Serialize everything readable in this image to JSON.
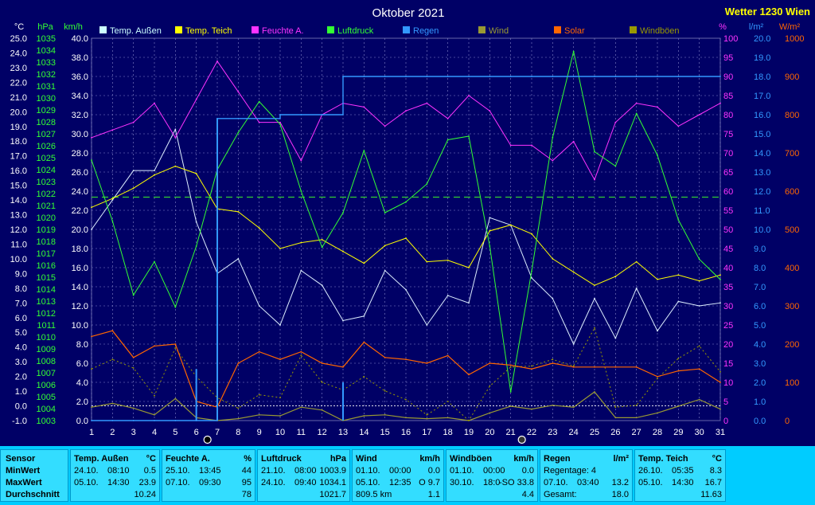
{
  "chart_data": {
    "type": "line",
    "title": "Oktober 2021",
    "brand": "Wetter 1230 Wien",
    "days": [
      1,
      2,
      3,
      4,
      5,
      6,
      7,
      8,
      9,
      10,
      11,
      12,
      13,
      14,
      15,
      16,
      17,
      18,
      19,
      20,
      21,
      22,
      23,
      24,
      25,
      26,
      27,
      28,
      29,
      30,
      31
    ],
    "axes": {
      "temp": {
        "unit": "°C",
        "ticks": [
          "25.0",
          "24.0",
          "23.0",
          "22.0",
          "21.0",
          "20.0",
          "19.0",
          "18.0",
          "17.0",
          "16.0",
          "15.0",
          "14.0",
          "13.0",
          "12.0",
          "11.0",
          "10.0",
          "9.0",
          "8.0",
          "7.0",
          "6.0",
          "5.0",
          "4.0",
          "3.0",
          "2.0",
          "1.0",
          "0.0",
          "-1.0"
        ],
        "range": [
          -1,
          25
        ]
      },
      "pressure": {
        "unit": "hPa",
        "ticks": [
          "1035",
          "1034",
          "1033",
          "1032",
          "1031",
          "1030",
          "1029",
          "1028",
          "1027",
          "1026",
          "1025",
          "1024",
          "1023",
          "1022",
          "1021",
          "1020",
          "1019",
          "1018",
          "1017",
          "1016",
          "1015",
          "1014",
          "1013",
          "1012",
          "1011",
          "1010",
          "1009",
          "1008",
          "1007",
          "1006",
          "1005",
          "1004",
          "1003"
        ],
        "range": [
          1003,
          1035
        ]
      },
      "wind": {
        "unit": "km/h",
        "ticks": [
          "40.0",
          "38.0",
          "36.0",
          "34.0",
          "32.0",
          "30.0",
          "28.0",
          "26.0",
          "24.0",
          "22.0",
          "20.0",
          "18.0",
          "16.0",
          "14.0",
          "12.0",
          "10.0",
          "8.0",
          "6.0",
          "4.0",
          "2.0",
          "0.0"
        ],
        "range": [
          0,
          40
        ]
      },
      "humidity": {
        "unit": "%",
        "ticks": [
          "100",
          "95",
          "90",
          "85",
          "80",
          "75",
          "70",
          "65",
          "60",
          "55",
          "50",
          "45",
          "40",
          "35",
          "30",
          "25",
          "20",
          "15",
          "10",
          "5",
          "0"
        ],
        "range": [
          0,
          100
        ]
      },
      "rain": {
        "unit": "l/m²",
        "ticks": [
          "20.0",
          "19.0",
          "18.0",
          "17.0",
          "16.0",
          "15.0",
          "14.0",
          "13.0",
          "12.0",
          "11.0",
          "10.0",
          "9.0",
          "8.0",
          "7.0",
          "6.0",
          "5.0",
          "4.0",
          "3.0",
          "2.0",
          "1.0",
          "0.0"
        ],
        "range": [
          0,
          20
        ]
      },
      "solar": {
        "unit": "W/m²",
        "ticks": [
          "1000",
          "900",
          "800",
          "700",
          "600",
          "500",
          "400",
          "300",
          "200",
          "100",
          "0"
        ],
        "range": [
          0,
          1000
        ]
      }
    },
    "legend": [
      {
        "name": "Temp. Außen",
        "color": "#ccffff"
      },
      {
        "name": "Temp. Teich",
        "color": "#ffff00"
      },
      {
        "name": "Feuchte A.",
        "color": "#ff33ff"
      },
      {
        "name": "Luftdruck",
        "color": "#33ff33"
      },
      {
        "name": "Regen",
        "color": "#3399ff"
      },
      {
        "name": "Wind",
        "color": "#999933"
      },
      {
        "name": "Solar",
        "color": "#ff6600"
      },
      {
        "name": "Windböen",
        "color": "#999900"
      }
    ],
    "series": [
      {
        "key": "temp_out",
        "axis": "temp",
        "color": "#ddeeff",
        "values": [
          12.0,
          14.0,
          16.0,
          16.0,
          18.8,
          12.5,
          9.0,
          10.0,
          6.8,
          5.5,
          9.2,
          8.2,
          5.8,
          6.1,
          9.2,
          7.9,
          5.5,
          7.5,
          7.0,
          12.8,
          12.3,
          8.7,
          7.3,
          4.2,
          7.3,
          4.6,
          8.0,
          5.1,
          7.1,
          6.8,
          7.0
        ]
      },
      {
        "key": "temp_pond",
        "axis": "temp",
        "color": "#ffff00",
        "values": [
          13.5,
          14.1,
          14.8,
          15.7,
          16.3,
          15.8,
          13.4,
          13.2,
          12.1,
          10.7,
          11.1,
          11.3,
          10.5,
          9.7,
          10.9,
          11.4,
          9.8,
          9.9,
          9.4,
          11.9,
          12.3,
          11.7,
          10.0,
          9.1,
          8.2,
          8.8,
          9.8,
          8.6,
          8.9,
          8.5,
          8.9
        ]
      },
      {
        "key": "humidity",
        "axis": "humidity",
        "values": [
          74,
          76,
          78,
          83,
          74,
          84,
          94,
          86,
          78,
          78,
          68,
          80,
          83,
          82,
          77,
          81,
          83,
          79,
          85,
          81,
          72,
          72,
          68,
          73,
          63,
          78,
          83,
          82,
          77,
          80,
          83
        ]
      },
      {
        "key": "pressure",
        "axis": "pressure",
        "values": [
          1024.8,
          1019.7,
          1013.5,
          1016.3,
          1012.5,
          1017.6,
          1024.0,
          1027.1,
          1029.7,
          1027.8,
          1022.2,
          1017.5,
          1020.4,
          1025.6,
          1020.4,
          1021.3,
          1022.8,
          1026.5,
          1026.8,
          1017.6,
          1005.4,
          1015.5,
          1026.7,
          1033.9,
          1025.5,
          1024.3,
          1028.7,
          1025.2,
          1019.8,
          1016.5,
          1014.8
        ]
      },
      {
        "key": "wind_avg",
        "axis": "wind",
        "values": [
          1.4,
          1.8,
          1.3,
          0.6,
          2.3,
          0.3,
          0.0,
          0.2,
          0.6,
          0.5,
          1.4,
          1.1,
          0.0,
          0.5,
          0.6,
          0.3,
          0.2,
          0.3,
          0.0,
          0.8,
          1.5,
          1.2,
          1.6,
          1.4,
          3.0,
          0.3,
          0.3,
          0.8,
          1.5,
          2.2,
          1.2
        ]
      },
      {
        "key": "wind_gust",
        "axis": "wind",
        "values": [
          5.4,
          6.4,
          5.5,
          2.6,
          7.6,
          4.6,
          2.4,
          1.3,
          2.7,
          2.4,
          6.8,
          4.0,
          3.2,
          4.6,
          3.1,
          2.2,
          0.6,
          2.0,
          0.0,
          3.6,
          5.6,
          5.7,
          6.4,
          5.7,
          9.7,
          1.4,
          1.6,
          4.4,
          6.5,
          7.8,
          5.1
        ]
      },
      {
        "key": "solar",
        "axis": "solar",
        "values": [
          220,
          235,
          165,
          195,
          200,
          50,
          35,
          150,
          180,
          160,
          180,
          150,
          140,
          205,
          165,
          160,
          150,
          170,
          120,
          150,
          145,
          135,
          150,
          140,
          140,
          140,
          140,
          115,
          130,
          135,
          100
        ]
      },
      {
        "key": "rain",
        "axis": "rain",
        "values": [
          0.0,
          0.0,
          0.0,
          0.0,
          0.0,
          0.0,
          15.8,
          15.8,
          15.8,
          16.0,
          16.0,
          16.0,
          18.0,
          18.0,
          18.0,
          18.0,
          18.0,
          18.0,
          18.0,
          18.0,
          18.0,
          18.0,
          18.0,
          18.0,
          18.0,
          18.0,
          18.0,
          18.0,
          18.0,
          18.0,
          18.0
        ]
      }
    ],
    "moon_phases": [
      {
        "day": 6,
        "symbol": "●"
      },
      {
        "day": 21,
        "symbol": "◎"
      }
    ]
  },
  "summary": {
    "labels": {
      "sensor": "Sensor",
      "min": "MinWert",
      "max": "MaxWert",
      "avg": "Durchschnitt"
    },
    "columns": [
      {
        "title": "Temp. Außen",
        "unit": "°C",
        "min": [
          "24.10.",
          "08:10",
          "0.5"
        ],
        "max": [
          "05.10.",
          "14:30",
          "23.9"
        ],
        "avg": [
          "",
          "",
          "10.24"
        ]
      },
      {
        "title": "Feuchte A.",
        "unit": "%",
        "min": [
          "25.10.",
          "13:45",
          "44"
        ],
        "max": [
          "07.10.",
          "09:30",
          "95"
        ],
        "avg": [
          "",
          "",
          "78"
        ]
      },
      {
        "title": "Luftdruck",
        "unit": "hPa",
        "min": [
          "21.10.",
          "08:00",
          "1003.9"
        ],
        "max": [
          "24.10.",
          "09:40",
          "1034.1"
        ],
        "avg": [
          "",
          "",
          "1021.7"
        ]
      },
      {
        "title": "Wind",
        "unit": "km/h",
        "min": [
          "01.10.",
          "00:00",
          "0.0"
        ],
        "max": [
          "05.10.",
          "12:35",
          "O 9.7"
        ],
        "avg": [
          "809.5 km",
          "",
          "1.1"
        ]
      },
      {
        "title": "Windböen",
        "unit": "km/h",
        "min": [
          "01.10.",
          "00:00",
          "0.0"
        ],
        "max": [
          "30.10.",
          "18:0",
          "-SO 33.8"
        ],
        "avg": [
          "",
          "",
          "4.4"
        ]
      },
      {
        "title": "Regen",
        "unit": "l/m²",
        "min": [
          "Regentage: 4",
          "",
          ""
        ],
        "max": [
          "07.10.",
          "03:40",
          "13.2"
        ],
        "avg": [
          "Gesamt:",
          "",
          "18.0"
        ]
      },
      {
        "title": "Temp. Teich",
        "unit": "°C",
        "min": [
          "26.10.",
          "05:35",
          "8.3"
        ],
        "max": [
          "05.10.",
          "14:30",
          "16.7"
        ],
        "avg": [
          "",
          "",
          "11.63"
        ]
      }
    ]
  }
}
